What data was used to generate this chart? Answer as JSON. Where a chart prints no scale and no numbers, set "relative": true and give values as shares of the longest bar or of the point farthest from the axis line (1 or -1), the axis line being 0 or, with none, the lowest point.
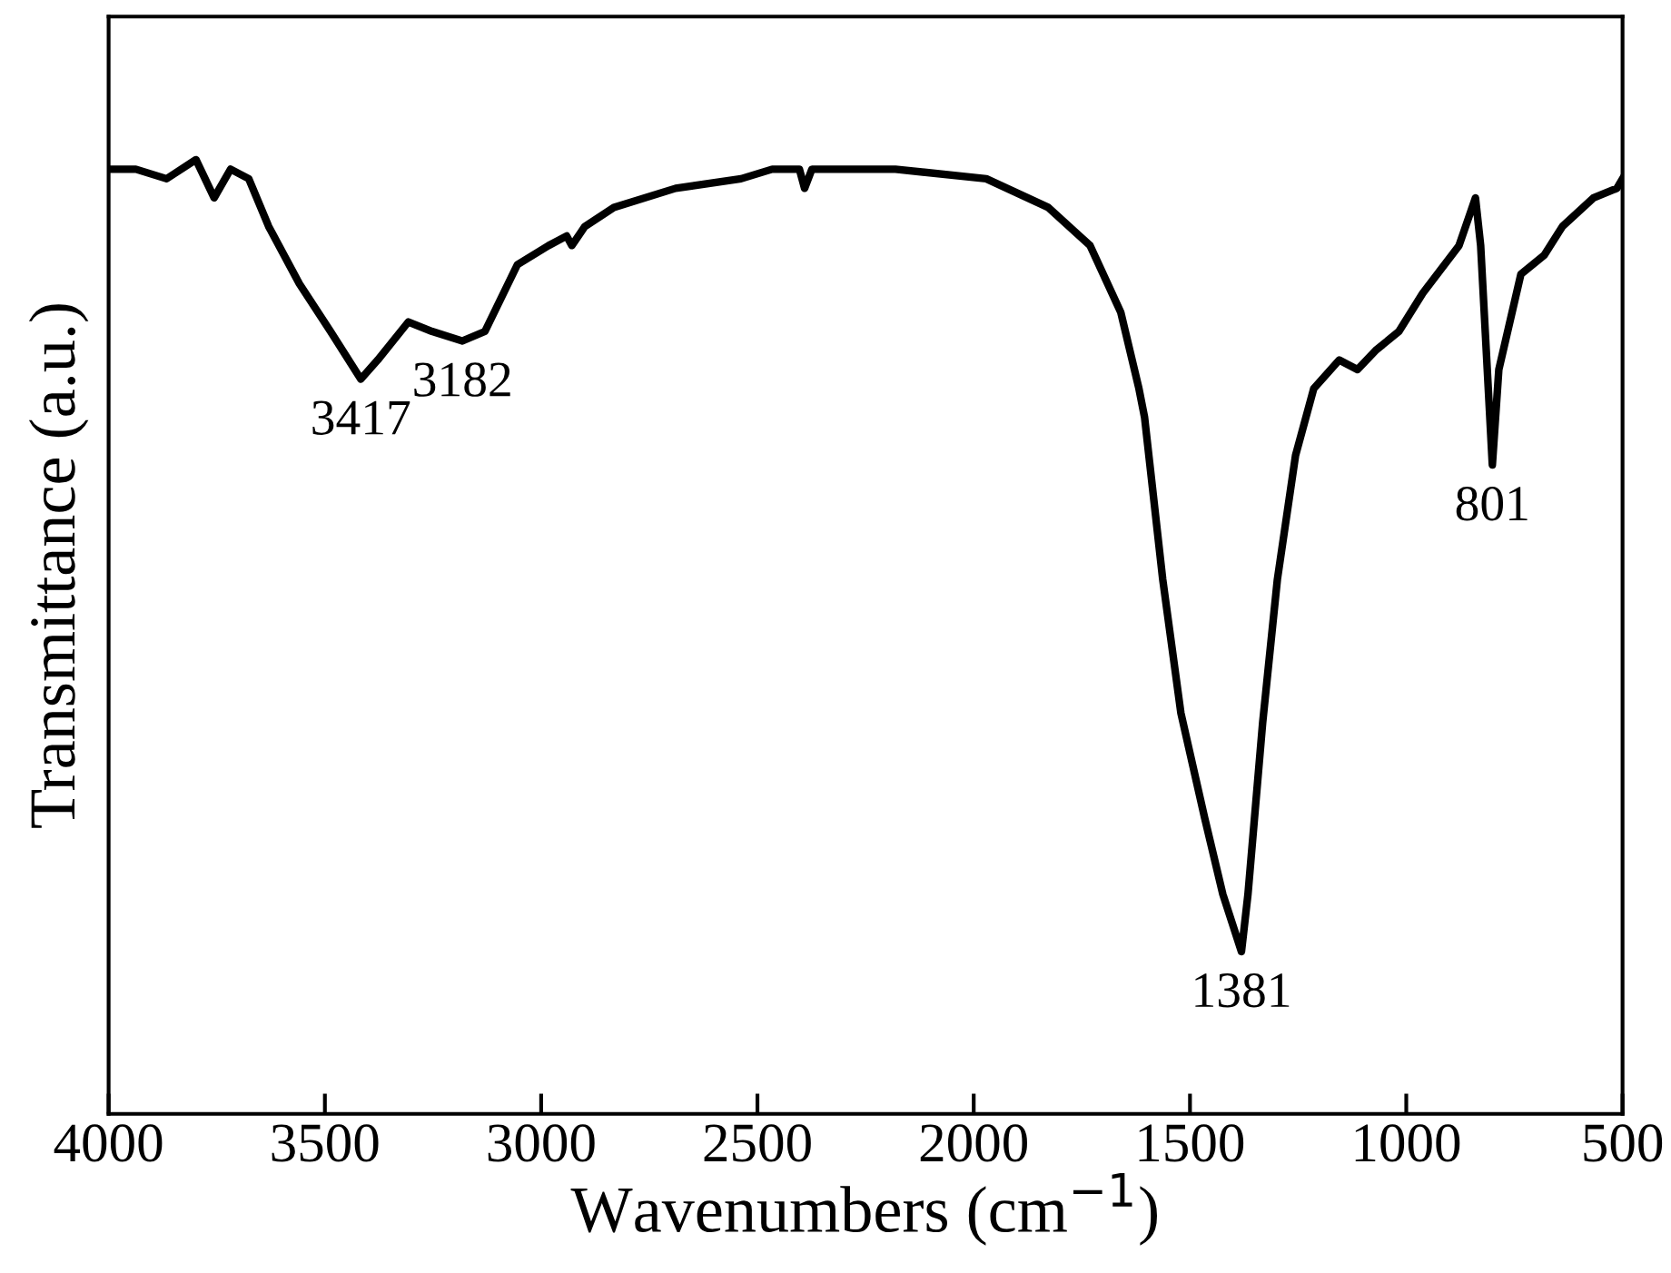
{
  "chart_data": {
    "type": "line",
    "relative": true,
    "xlabel": "Wavenumbers (cm$^{−1}$)",
    "ylabel": "Transmittance (a.u.)",
    "xlim": [
      4000,
      500
    ],
    "xticks": [
      4000,
      3500,
      3000,
      2500,
      2000,
      1500,
      1000,
      500
    ],
    "grid": false,
    "tick_labels": "x",
    "marker": "none",
    "line_style": "solid",
    "annotations": [
      {
        "text": "3417",
        "x": 3417,
        "y": 0.77
      },
      {
        "text": "3182",
        "x": 3182,
        "y": 0.81
      },
      {
        "text": "1381",
        "x": 1381,
        "y": 0.17
      },
      {
        "text": "801",
        "x": 801,
        "y": 0.68
      }
    ],
    "series": [
      {
        "color": "#000000",
        "x": [
          4000,
          3937,
          3866,
          3798,
          3756,
          3718,
          3676,
          3630,
          3559,
          3487,
          3417,
          3378,
          3307,
          3252,
          3182,
          3130,
          3055,
          2983,
          2941,
          2929,
          2899,
          2832,
          2689,
          2538,
          2466,
          2403,
          2391,
          2374,
          2298,
          2181,
          1971,
          1828,
          1731,
          1660,
          1618,
          1605,
          1563,
          1521,
          1466,
          1424,
          1381,
          1366,
          1332,
          1298,
          1256,
          1214,
          1155,
          1113,
          1071,
          1017,
          962,
          878,
          840,
          828,
          801,
          786,
          735,
          681,
          639,
          567,
          513,
          500
        ],
        "values": [
          0.99,
          0.99,
          0.98,
          1.0,
          0.96,
          0.99,
          0.98,
          0.93,
          0.87,
          0.82,
          0.77,
          0.79,
          0.83,
          0.82,
          0.81,
          0.82,
          0.89,
          0.91,
          0.92,
          0.91,
          0.93,
          0.95,
          0.97,
          0.98,
          0.99,
          0.99,
          0.97,
          0.99,
          0.99,
          0.99,
          0.98,
          0.95,
          0.91,
          0.84,
          0.76,
          0.73,
          0.56,
          0.42,
          0.31,
          0.23,
          0.17,
          0.23,
          0.41,
          0.56,
          0.69,
          0.76,
          0.79,
          0.78,
          0.8,
          0.82,
          0.86,
          0.91,
          0.96,
          0.91,
          0.68,
          0.78,
          0.88,
          0.9,
          0.93,
          0.96,
          0.97,
          0.98
        ]
      }
    ]
  }
}
